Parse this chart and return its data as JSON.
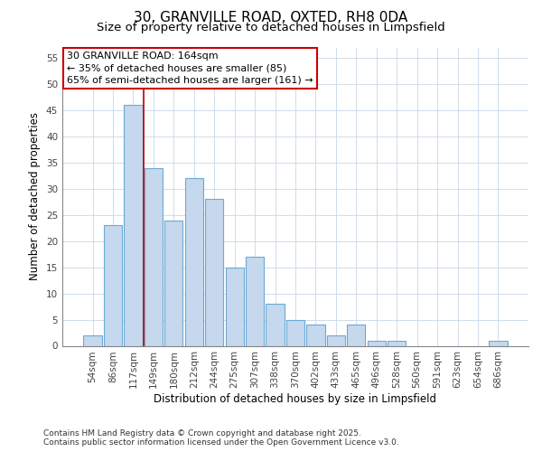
{
  "title": "30, GRANVILLE ROAD, OXTED, RH8 0DA",
  "subtitle": "Size of property relative to detached houses in Limpsfield",
  "xlabel": "Distribution of detached houses by size in Limpsfield",
  "ylabel": "Number of detached properties",
  "categories": [
    "54sqm",
    "86sqm",
    "117sqm",
    "149sqm",
    "180sqm",
    "212sqm",
    "244sqm",
    "275sqm",
    "307sqm",
    "338sqm",
    "370sqm",
    "402sqm",
    "433sqm",
    "465sqm",
    "496sqm",
    "528sqm",
    "560sqm",
    "591sqm",
    "623sqm",
    "654sqm",
    "686sqm"
  ],
  "values": [
    2,
    23,
    46,
    34,
    24,
    32,
    28,
    15,
    17,
    8,
    5,
    4,
    2,
    4,
    1,
    1,
    0,
    0,
    0,
    0,
    1
  ],
  "bar_color": "#c5d8ee",
  "bar_edge_color": "#6aaad4",
  "ylim": [
    0,
    57
  ],
  "yticks": [
    0,
    5,
    10,
    15,
    20,
    25,
    30,
    35,
    40,
    45,
    50,
    55
  ],
  "red_line_x": 2.5,
  "annotation_text": "30 GRANVILLE ROAD: 164sqm\n← 35% of detached houses are smaller (85)\n65% of semi-detached houses are larger (161) →",
  "annotation_box_color": "#ffffff",
  "annotation_box_edge": "#cc0000",
  "footer_line1": "Contains HM Land Registry data © Crown copyright and database right 2025.",
  "footer_line2": "Contains public sector information licensed under the Open Government Licence v3.0.",
  "background_color": "#ffffff",
  "plot_background": "#ffffff",
  "grid_color": "#c8d8e8",
  "title_fontsize": 11,
  "subtitle_fontsize": 9.5,
  "axis_label_fontsize": 8.5,
  "tick_fontsize": 7.5,
  "annotation_fontsize": 8,
  "footer_fontsize": 6.5
}
